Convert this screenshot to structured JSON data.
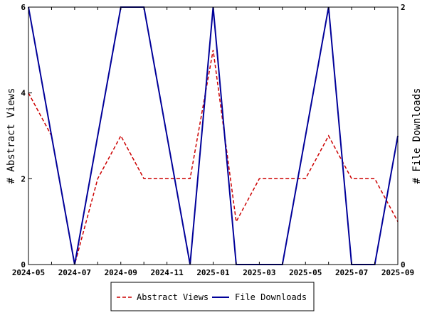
{
  "chart_data": {
    "type": "line",
    "x": [
      "2024-05",
      "2024-06",
      "2024-07",
      "2024-08",
      "2024-09",
      "2024-10",
      "2024-11",
      "2024-12",
      "2025-01",
      "2025-02",
      "2025-03",
      "2025-04",
      "2025-05",
      "2025-06",
      "2025-07",
      "2025-08",
      "2025-09"
    ],
    "x_tick_labels": [
      "2024-05",
      "2024-07",
      "2024-09",
      "2024-11",
      "2025-01",
      "2025-03",
      "2025-05",
      "2025-07",
      "2025-09"
    ],
    "ylabel": "# Abstract Views",
    "y2label": "# File Downloads",
    "ylim": [
      0,
      6
    ],
    "y2lim": [
      0,
      2
    ],
    "y_ticks": [
      "0",
      "2",
      "4",
      "6"
    ],
    "y2_ticks": [
      "0",
      "2"
    ],
    "grid": false,
    "legend_position": "bottom-center",
    "series": [
      {
        "name": "Abstract Views",
        "axis": "left",
        "color": "#cc0000",
        "style": "dashed",
        "values": [
          4,
          3,
          0,
          2,
          3,
          2,
          2,
          2,
          5,
          1,
          2,
          2,
          2,
          3,
          2,
          2,
          1
        ]
      },
      {
        "name": "File Downloads",
        "axis": "right",
        "color": "#000099",
        "style": "solid",
        "values": [
          2,
          1,
          0,
          1,
          2,
          2,
          1,
          0,
          2,
          0,
          0,
          0,
          1,
          2,
          0,
          0,
          1
        ]
      }
    ]
  }
}
